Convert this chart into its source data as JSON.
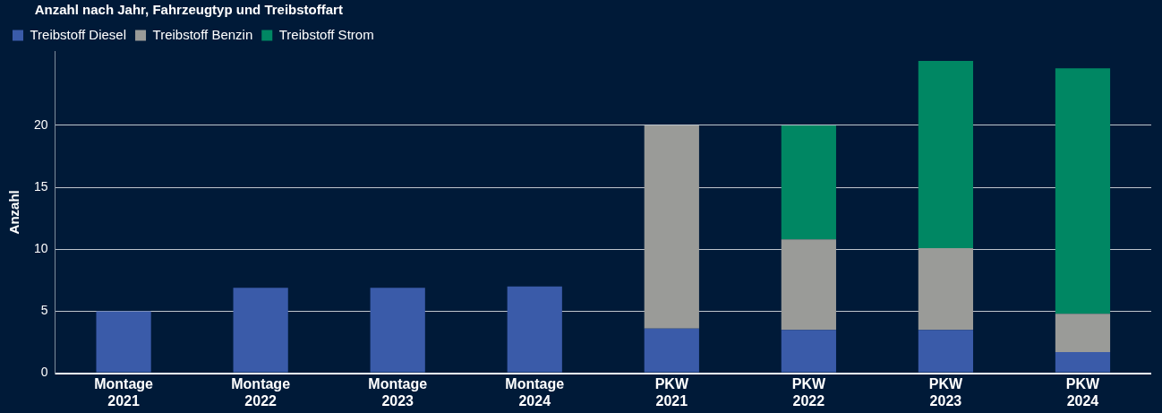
{
  "chart_data": {
    "type": "bar",
    "stacked": true,
    "legend_title": "Anzahl nach Jahr, Fahrzeugtyp und Treibstoffart",
    "ylabel": "Anzahl",
    "categories": [
      "Montage 2021",
      "Montage 2022",
      "Montage 2023",
      "Montage 2024",
      "PKW 2021",
      "PKW 2022",
      "PKW 2023",
      "PKW 2024"
    ],
    "series": [
      {
        "name": "Treibstoff Diesel",
        "color": "#3a5ba9",
        "values": [
          5.0,
          6.9,
          6.9,
          7.0,
          3.6,
          3.5,
          3.5,
          1.7
        ]
      },
      {
        "name": "Treibstoff Benzin",
        "color": "#9a9b98",
        "values": [
          null,
          null,
          null,
          null,
          16.4,
          7.3,
          6.6,
          3.1
        ]
      },
      {
        "name": "Treibstoff Strom",
        "color": "#008763",
        "values": [
          null,
          null,
          null,
          null,
          null,
          9.2,
          15.1,
          19.8
        ]
      }
    ],
    "ylim": [
      0,
      26
    ],
    "yticks": [
      0,
      5,
      10,
      15,
      20
    ],
    "grid": "y",
    "legend": "top left"
  }
}
